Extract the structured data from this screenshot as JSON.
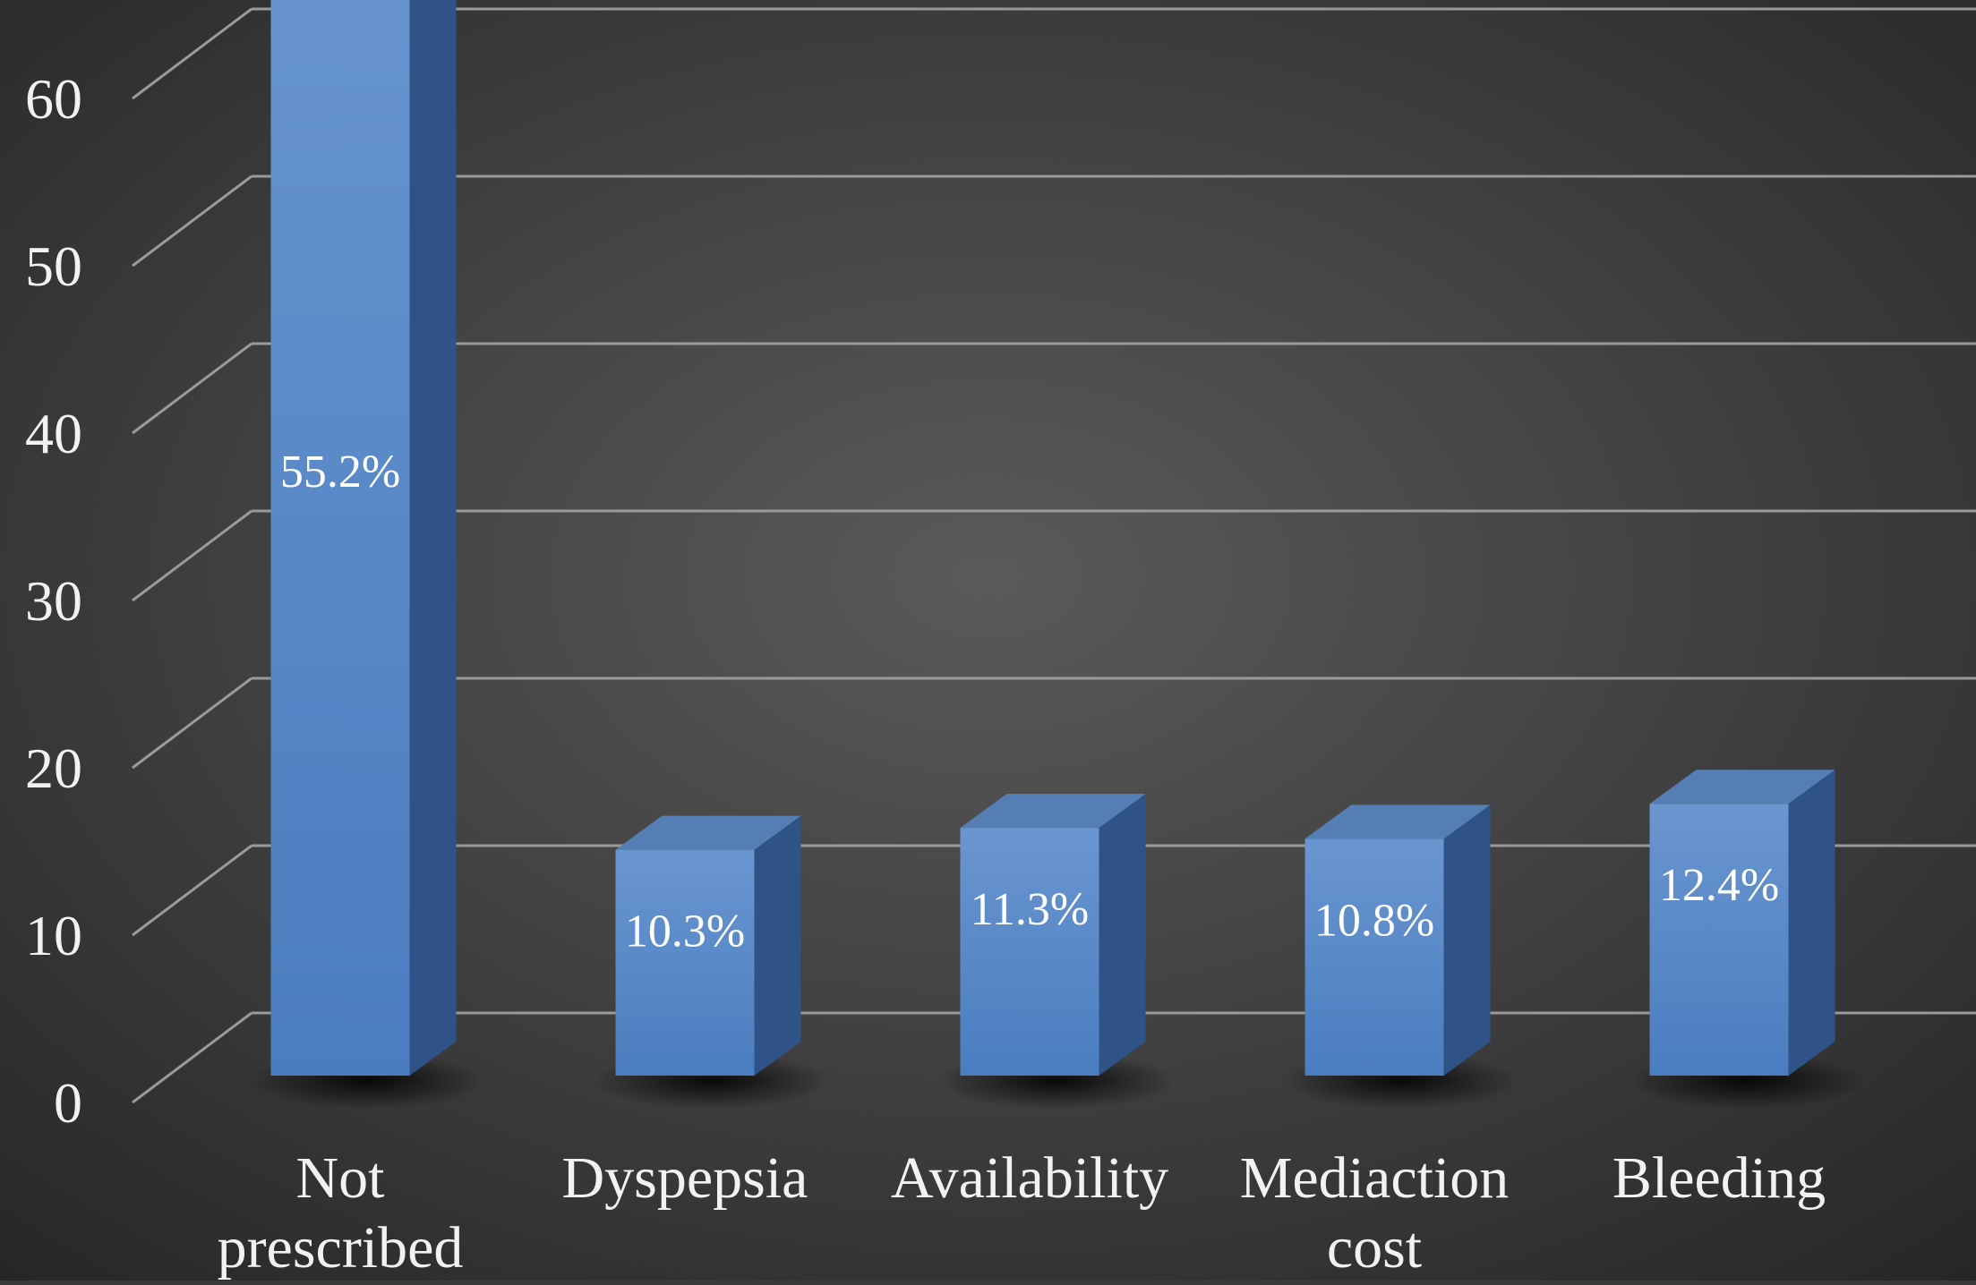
{
  "chart_data": {
    "type": "bar",
    "title": "",
    "xlabel": "",
    "ylabel": "",
    "categories": [
      [
        "Not",
        "prescribed"
      ],
      [
        "Dyspepsia"
      ],
      [
        "Availability"
      ],
      [
        "Mediaction",
        "cost"
      ],
      [
        "Bleeding"
      ]
    ],
    "values": [
      55.2,
      10.3,
      11.3,
      10.8,
      12.4
    ],
    "value_labels": [
      "55.2%",
      "10.3%",
      "11.3%",
      "10.8%",
      "12.4%"
    ],
    "yticks": [
      "0",
      "10",
      "20",
      "30",
      "40",
      "50",
      "60"
    ],
    "ylim": [
      0,
      60
    ],
    "grid": true,
    "legend": "none",
    "style": "3d-columns",
    "colors": {
      "bar_front": "#4a7dc0",
      "bar_front_light": "#6a96d0",
      "bar_side": "#2f5386",
      "bar_top": "#557fb4",
      "grid": "#9a9a9a",
      "text": "#f2f2f2",
      "background_center": "#5a5a5a",
      "background_edge": "#262626"
    }
  }
}
